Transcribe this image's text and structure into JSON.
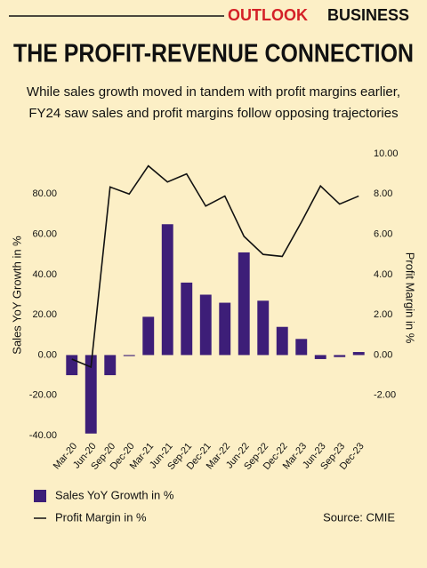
{
  "brand": {
    "first": "OUTLOOK",
    "second": "BUSINESS"
  },
  "chart_data": {
    "type": "bar-line",
    "title": "THE PROFIT-REVENUE CONNECTION",
    "subtitle": [
      "While sales growth moved in tandem with profit margins earlier,",
      "FY24 saw sales and profit margins follow opposing trajectories"
    ],
    "y_label": "Sales YoY Growth in %",
    "y2_label": "Profit Margin in %",
    "source": "Source: CMIE",
    "categories": [
      "Mar-20",
      "Jun-20",
      "Sep-20",
      "Dec-20",
      "Mar-21",
      "Jun-21",
      "Sep-21",
      "Dec-21",
      "Mar-22",
      "Jun-22",
      "Sep-22",
      "Dec-22",
      "Mar-23",
      "Jun-23",
      "Sep-23",
      "Dec-23"
    ],
    "series": [
      {
        "name": "Sales YoY Growth in %",
        "type": "bar",
        "color": "#3d1e78",
        "axis": "y",
        "values": [
          -10,
          -39,
          -10,
          -0.5,
          19,
          65,
          36,
          30,
          26,
          51,
          27,
          14,
          8,
          -2,
          -1,
          1.5
        ]
      },
      {
        "name": "Profit Margin in %",
        "type": "line",
        "color": "#111111",
        "axis": "y2",
        "values": [
          -0.2,
          -0.6,
          8.35,
          8.0,
          9.4,
          8.6,
          9.0,
          7.4,
          7.9,
          5.9,
          5.0,
          4.9,
          6.6,
          8.4,
          7.5,
          7.9
        ]
      }
    ],
    "ylim": [
      -40,
      100
    ],
    "yticks": [
      {
        "value": -40,
        "label": "-40.00"
      },
      {
        "value": -20,
        "label": "-20.00"
      },
      {
        "value": 0,
        "label": "0.00"
      },
      {
        "value": 20,
        "label": "20.00"
      },
      {
        "value": 40,
        "label": "40.00"
      },
      {
        "value": 60,
        "label": "60.00"
      },
      {
        "value": 80,
        "label": "80.00"
      }
    ],
    "y2lim": [
      -4,
      10
    ],
    "y2ticks": [
      {
        "value": -2,
        "label": "-2.00"
      },
      {
        "value": 0,
        "label": "0.00"
      },
      {
        "value": 2,
        "label": "2.00"
      },
      {
        "value": 4,
        "label": "4.00"
      },
      {
        "value": 6,
        "label": "6.00"
      },
      {
        "value": 8,
        "label": "8.00"
      },
      {
        "value": 10,
        "label": "10.00"
      }
    ]
  }
}
